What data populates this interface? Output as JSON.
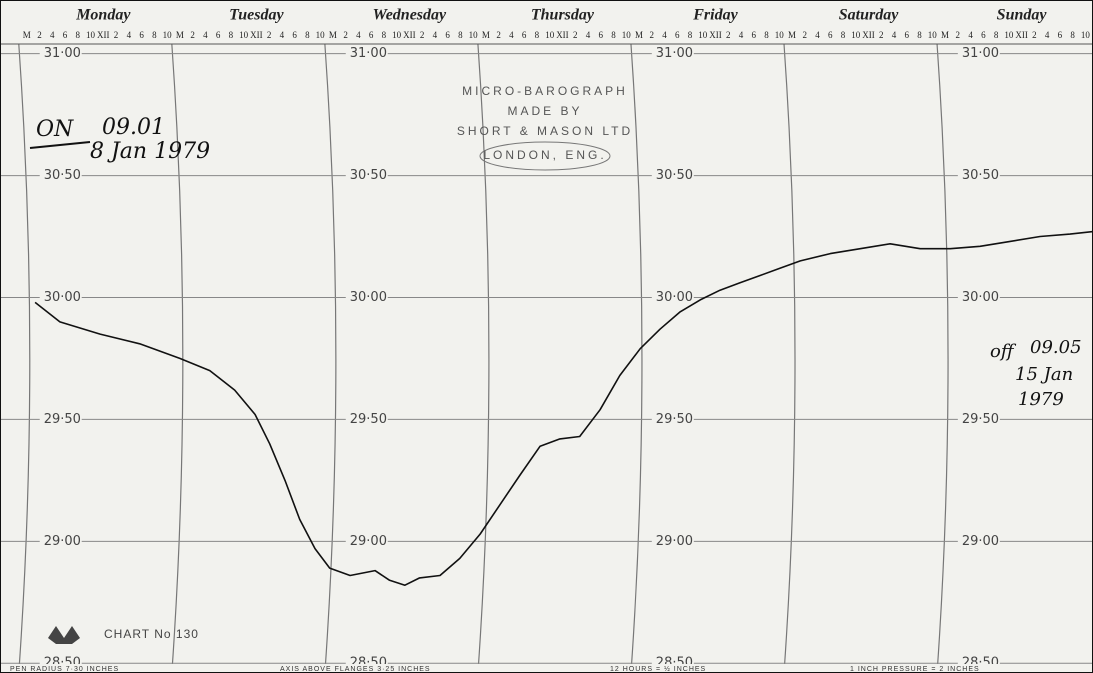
{
  "chart_data": {
    "type": "line",
    "days": [
      "Monday",
      "Tuesday",
      "Wednesday",
      "Thursday",
      "Friday",
      "Saturday",
      "Sunday"
    ],
    "hour_labels": [
      "M",
      "2",
      "4",
      "6",
      "8",
      "10",
      "XII",
      "2",
      "4",
      "6",
      "8",
      "10"
    ],
    "x": [
      1.3,
      5.2,
      11.5,
      17.7,
      24.0,
      28.7,
      32.6,
      35.8,
      38.1,
      40.5,
      42.8,
      45.2,
      47.5,
      50.7,
      54.6,
      56.9,
      59.3,
      61.6,
      64.8,
      67.9,
      71.1,
      74.2,
      77.3,
      80.5,
      83.6,
      86.7,
      89.9,
      93.0,
      96.2,
      99.3,
      102.4,
      105.6,
      108.7,
      111.8,
      115.0,
      118.1,
      121.3,
      126.0,
      130.7,
      135.4,
      140.1,
      144.8,
      149.5,
      154.2,
      158.9,
      163.6,
      167.2
    ],
    "values": [
      29.98,
      29.9,
      29.85,
      29.81,
      29.75,
      29.7,
      29.62,
      29.52,
      29.4,
      29.25,
      29.09,
      28.97,
      28.89,
      28.86,
      28.88,
      28.84,
      28.82,
      28.85,
      28.86,
      28.93,
      29.03,
      29.15,
      29.27,
      29.39,
      29.42,
      29.43,
      29.54,
      29.68,
      29.79,
      29.87,
      29.94,
      29.99,
      30.03,
      30.06,
      30.09,
      30.12,
      30.15,
      30.18,
      30.2,
      30.22,
      30.2,
      30.2,
      30.21,
      30.23,
      30.25,
      30.26,
      30.27
    ],
    "color": "#111111",
    "xlim": [
      -4.2,
      167.2
    ],
    "ylim": [
      28.46,
      31.22
    ],
    "xticks": [
      0,
      24,
      48,
      72,
      96,
      120,
      144
    ],
    "yticks": [
      {
        "value": 28.5,
        "label": "28·50"
      },
      {
        "value": 29,
        "label": "29·00"
      },
      {
        "value": 29.5,
        "label": "29·50"
      },
      {
        "value": 30,
        "label": "30·00"
      },
      {
        "value": 30.5,
        "label": "30·50"
      },
      {
        "value": 31,
        "label": "31·00"
      }
    ],
    "grid": true,
    "maker": [
      "MICRO-BAROGRAPH",
      "MADE BY",
      "SHORT & MASON LTD",
      "LONDON, ENG."
    ],
    "chart_number": "CHART No 130",
    "footer": [
      "PEN RADIUS 7·30 INCHES",
      "AXIS ABOVE FLANGES 3·25 INCHES",
      "12 HOURS = ½ INCHES",
      "1 INCH PRESSURE = 2 INCHES"
    ],
    "annotations": {
      "on": [
        "ON",
        "09.01",
        "8 Jan 1979"
      ],
      "off": [
        "off",
        "09.05",
        "15 Jan",
        "1979"
      ]
    }
  }
}
